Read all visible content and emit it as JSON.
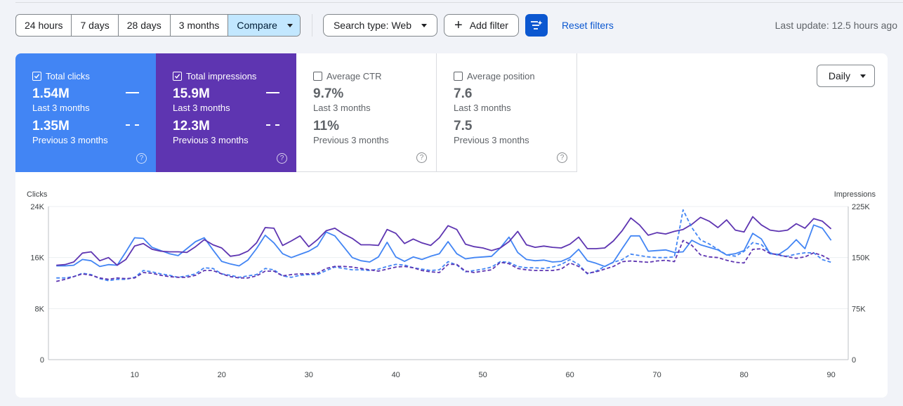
{
  "toolbar": {
    "ranges": [
      "24 hours",
      "7 days",
      "28 days",
      "3 months"
    ],
    "compare_label": "Compare",
    "search_type_label": "Search type: Web",
    "add_filter_label": "Add filter",
    "reset_label": "Reset filters",
    "last_update": "Last update: 12.5 hours ago"
  },
  "metrics": [
    {
      "label": "Total clicks",
      "checked": true,
      "current": "1.54M",
      "current_period": "Last 3 months",
      "previous": "1.35M",
      "previous_period": "Previous 3 months",
      "color": "#4285f4"
    },
    {
      "label": "Total impressions",
      "checked": true,
      "current": "15.9M",
      "current_period": "Last 3 months",
      "previous": "12.3M",
      "previous_period": "Previous 3 months",
      "color": "#5e35b1"
    },
    {
      "label": "Average CTR",
      "checked": false,
      "current": "9.7%",
      "current_period": "Last 3 months",
      "previous": "11%",
      "previous_period": "Previous 3 months"
    },
    {
      "label": "Average position",
      "checked": false,
      "current": "7.6",
      "current_period": "Last 3 months",
      "previous": "7.5",
      "previous_period": "Previous 3 months"
    }
  ],
  "granularity_label": "Daily",
  "chart_data": {
    "type": "line",
    "ylabel_left": "Clicks",
    "ylabel_right": "Impressions",
    "ylim_left": [
      0,
      24000
    ],
    "ylim_right": [
      0,
      225000
    ],
    "yticks_left": [
      "0",
      "8K",
      "16K",
      "24K"
    ],
    "yticks_right": [
      "0",
      "75K",
      "150K",
      "225K"
    ],
    "xlim": [
      1,
      91
    ],
    "xticks": [
      10,
      20,
      30,
      40,
      50,
      60,
      70,
      80,
      90
    ],
    "grid": true,
    "series": [
      {
        "axis": "left",
        "style": "solid",
        "color": "#4285f4",
        "values": [
          14700,
          14700,
          14800,
          15700,
          15500,
          14600,
          14900,
          14800,
          16900,
          19100,
          19000,
          17600,
          17100,
          16600,
          16300,
          17400,
          18500,
          19100,
          17200,
          15400,
          15000,
          14700,
          15600,
          17400,
          19500,
          18300,
          16600,
          16000,
          16500,
          17000,
          17800,
          20000,
          19400,
          17700,
          16000,
          15500,
          15300,
          16100,
          18400,
          16100,
          15400,
          16100,
          15700,
          16200,
          16600,
          18500,
          16600,
          15800,
          16000,
          16100,
          16200,
          17500,
          19200,
          16800,
          15700,
          15500,
          15600,
          15300,
          15400,
          16000,
          17300,
          15500,
          15100,
          14600,
          15300,
          17400,
          19400,
          19400,
          17000,
          17100,
          17200,
          16800,
          16900,
          18700,
          18000,
          17600,
          17200,
          16400,
          16600,
          17100,
          19800,
          18900,
          16600,
          16500,
          17400,
          18800,
          17400,
          21100,
          20600,
          18700
        ]
      },
      {
        "axis": "left",
        "style": "solid",
        "color": "#5e35b1",
        "values": [
          14800,
          14900,
          15300,
          16700,
          16900,
          15500,
          16000,
          14800,
          15700,
          17800,
          18200,
          17300,
          17000,
          16900,
          16900,
          16800,
          17700,
          18800,
          18000,
          17500,
          16200,
          16400,
          17000,
          18300,
          20700,
          20600,
          17900,
          18600,
          19400,
          17700,
          18800,
          20200,
          20600,
          19700,
          19000,
          18000,
          18000,
          17900,
          20400,
          19800,
          18200,
          18900,
          18300,
          17900,
          19100,
          21000,
          20400,
          18100,
          17700,
          17500,
          17100,
          17500,
          18500,
          20100,
          18000,
          17600,
          17800,
          17600,
          17500,
          18100,
          19200,
          17400,
          17400,
          17500,
          18600,
          20200,
          22200,
          21100,
          19500,
          19900,
          19700,
          20100,
          20400,
          21200,
          22300,
          21700,
          20700,
          21900,
          20300,
          20000,
          22400,
          21100,
          20300,
          20100,
          20300,
          21300,
          20600,
          22100,
          21700,
          20500
        ]
      },
      {
        "axis": "right",
        "style": "dashed",
        "color": "#4285f4",
        "values": [
          120000,
          120000,
          122000,
          127000,
          125000,
          119000,
          116000,
          118000,
          118000,
          121000,
          131000,
          129000,
          126000,
          124000,
          121000,
          123000,
          126000,
          135000,
          134000,
          126000,
          124000,
          121000,
          123000,
          125000,
          134000,
          132000,
          123000,
          121000,
          124000,
          125000,
          125000,
          131000,
          136000,
          134000,
          132000,
          132000,
          131000,
          133000,
          137000,
          140000,
          139000,
          135000,
          133000,
          131000,
          132000,
          144000,
          139000,
          129000,
          131000,
          133000,
          136000,
          144000,
          143000,
          137000,
          135000,
          135000,
          134000,
          136000,
          140000,
          147000,
          140000,
          126000,
          130000,
          137000,
          143000,
          147000,
          155000,
          153000,
          151000,
          150000,
          150000,
          151000,
          220000,
          194000,
          176000,
          170000,
          162000,
          154000,
          152000,
          159000,
          172000,
          169000,
          157000,
          153000,
          152000,
          155000,
          157000,
          157000,
          147000,
          143000
        ]
      },
      {
        "axis": "right",
        "style": "dashed",
        "color": "#5e35b1",
        "values": [
          115000,
          118000,
          122000,
          126000,
          124000,
          120000,
          118000,
          120000,
          119000,
          120000,
          128000,
          127000,
          124000,
          122000,
          121000,
          121000,
          124000,
          131000,
          131000,
          126000,
          122000,
          120000,
          120000,
          123000,
          130000,
          130000,
          123000,
          125000,
          126000,
          126000,
          127000,
          134000,
          137000,
          137000,
          136000,
          134000,
          132000,
          130000,
          133000,
          136000,
          137000,
          135000,
          131000,
          129000,
          128000,
          140000,
          140000,
          130000,
          128000,
          130000,
          132000,
          143000,
          141000,
          134000,
          132000,
          131000,
          131000,
          131000,
          133000,
          142000,
          137000,
          127000,
          129000,
          133000,
          137000,
          144000,
          145000,
          144000,
          143000,
          145000,
          146000,
          144000,
          175000,
          168000,
          154000,
          151000,
          150000,
          146000,
          143000,
          142000,
          162000,
          163000,
          156000,
          154000,
          151000,
          149000,
          151000,
          157000,
          153000,
          146000
        ]
      }
    ]
  }
}
